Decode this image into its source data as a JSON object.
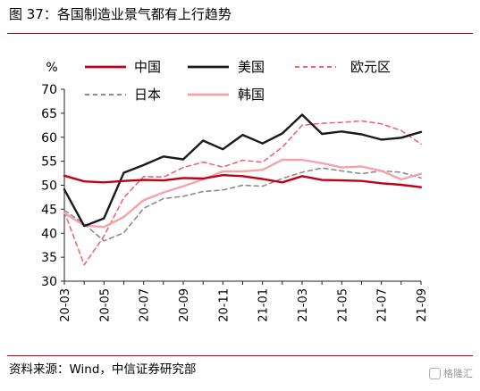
{
  "header": {
    "title": "图 37：各国制造业景气都有上行趋势"
  },
  "footer": {
    "source": "资料来源：Wind，中信证券研究部",
    "watermark": "格隆汇"
  },
  "chart_data": {
    "type": "line",
    "ylabel": "%",
    "ylim": [
      30,
      70
    ],
    "yticks": [
      30,
      35,
      40,
      45,
      50,
      55,
      60,
      65,
      70
    ],
    "xlim": [
      "2020-03",
      "2021-09"
    ],
    "xticks": [
      "20-03",
      "20-05",
      "20-07",
      "20-09",
      "20-11",
      "21-01",
      "21-03",
      "21-05",
      "21-07",
      "21-09"
    ],
    "x": [
      "2020-03",
      "2020-04",
      "2020-05",
      "2020-06",
      "2020-07",
      "2020-08",
      "2020-09",
      "2020-10",
      "2020-11",
      "2020-12",
      "2021-01",
      "2021-02",
      "2021-03",
      "2021-04",
      "2021-05",
      "2021-06",
      "2021-07",
      "2021-08",
      "2021-09"
    ],
    "grid": false,
    "legend_position": "top",
    "series": [
      {
        "name": "中国",
        "color": "#c00016",
        "dash": "solid",
        "width": 2.4,
        "values": [
          52.0,
          50.8,
          50.6,
          50.9,
          51.1,
          51.0,
          51.5,
          51.4,
          52.1,
          51.9,
          51.3,
          50.6,
          51.9,
          51.1,
          51.0,
          50.9,
          50.4,
          50.1,
          49.6
        ]
      },
      {
        "name": "美国",
        "color": "#1a1a1a",
        "dash": "solid",
        "width": 2.4,
        "values": [
          49.1,
          41.5,
          43.1,
          52.6,
          54.2,
          56.0,
          55.4,
          59.3,
          57.5,
          60.5,
          58.7,
          60.8,
          64.7,
          60.7,
          61.2,
          60.6,
          59.5,
          59.9,
          61.1
        ]
      },
      {
        "name": "欧元区",
        "color": "#ef6677",
        "dash": "dashed",
        "width": 1.6,
        "values": [
          44.5,
          33.4,
          39.4,
          47.4,
          51.8,
          51.7,
          53.7,
          54.8,
          53.8,
          55.2,
          54.8,
          57.9,
          62.5,
          62.9,
          63.1,
          63.4,
          62.8,
          61.4,
          58.6
        ]
      },
      {
        "name": "日本",
        "color": "#8c8c8c",
        "dash": "dashed",
        "width": 1.6,
        "values": [
          44.8,
          41.9,
          38.4,
          40.1,
          45.2,
          47.2,
          47.7,
          48.7,
          49.0,
          50.0,
          49.8,
          51.4,
          52.7,
          53.6,
          53.0,
          52.4,
          53.0,
          52.7,
          51.5
        ]
      },
      {
        "name": "韩国",
        "color": "#f5a3ab",
        "dash": "solid",
        "width": 2.4,
        "values": [
          44.2,
          41.6,
          41.3,
          43.4,
          46.9,
          48.5,
          49.8,
          51.2,
          52.9,
          52.9,
          53.2,
          55.3,
          55.3,
          54.6,
          53.7,
          53.9,
          53.0,
          51.2,
          52.4
        ]
      }
    ]
  }
}
